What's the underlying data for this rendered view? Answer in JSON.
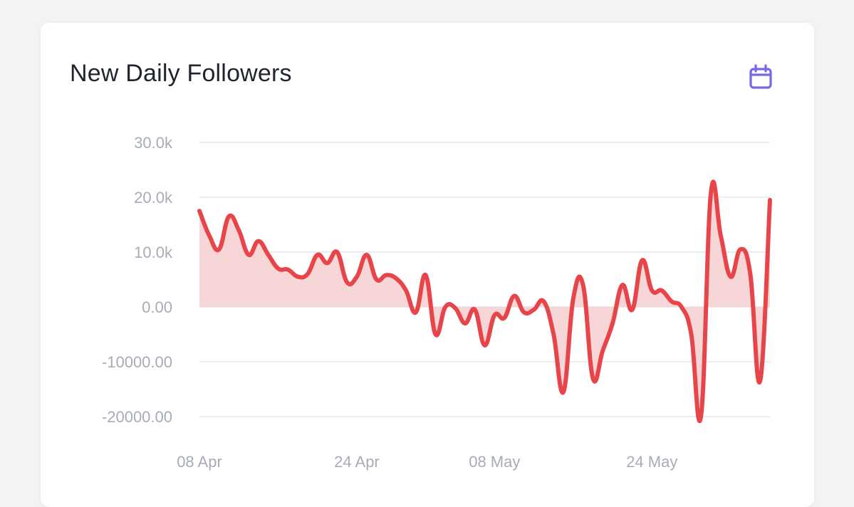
{
  "card": {
    "title": "New Daily Followers"
  },
  "icons": {
    "calendar": "calendar-icon"
  },
  "colors": {
    "line": "#e8454a",
    "area": "#f6cfd1",
    "accent": "#7469e8"
  },
  "chart_data": {
    "type": "area",
    "title": "New Daily Followers",
    "xlabel": "",
    "ylabel": "",
    "ylim": [
      -20000,
      30000
    ],
    "y_ticks": [
      30000,
      20000,
      10000,
      0,
      -10000,
      -20000
    ],
    "y_tick_labels": [
      "30.0k",
      "20.0k",
      "10.0k",
      "0.00",
      "-10000.00",
      "-20000.00"
    ],
    "x_tick_labels": [
      "08 Apr",
      "24 Apr",
      "08 May",
      "24 May"
    ],
    "x_tick_positions": [
      0,
      16,
      30,
      46
    ],
    "grid": true,
    "series": [
      {
        "values": [
          17500,
          13000,
          10500,
          16500,
          14000,
          9500,
          12000,
          9500,
          7000,
          6800,
          5500,
          6000,
          9500,
          8000,
          10000,
          4500,
          5500,
          9500,
          5000,
          5800,
          5200,
          3000,
          -1000,
          5800,
          -5000,
          0,
          -200,
          -3000,
          -500,
          -7000,
          -1500,
          -2000,
          2000,
          -1000,
          -500,
          1000,
          -5000,
          -15500,
          1500,
          4000,
          -13000,
          -8000,
          -3000,
          4000,
          -500,
          8500,
          3000,
          3000,
          1000,
          0,
          -5000,
          -19800,
          20800,
          13000,
          5500,
          10500,
          6000,
          -13500,
          19500
        ]
      }
    ]
  }
}
